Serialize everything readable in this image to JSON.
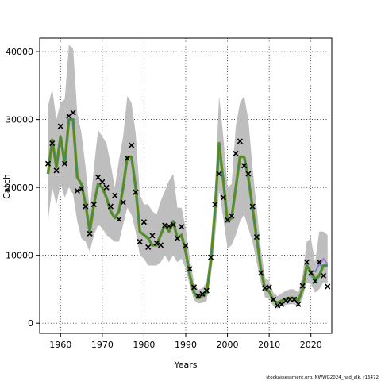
{
  "chart_data": {
    "type": "line",
    "title": "",
    "xlabel": "Years",
    "ylabel": "Catch",
    "xlim": [
      1955,
      2025
    ],
    "ylim": [
      -1500,
      42000
    ],
    "x_ticks": [
      1960,
      1970,
      1980,
      1990,
      2000,
      2010,
      2020
    ],
    "y_ticks": [
      0,
      10000,
      20000,
      30000,
      40000
    ],
    "grid": true,
    "grid_style": "dotted",
    "credit": "stockassessment.org, NWWG2024_had_alk, r16472",
    "colors": {
      "band": "#bebebe",
      "main_line": "#6b8e23",
      "line_green": "#2e8b57",
      "line_teal": "#5fb8b0",
      "line_blue": "#6a7fd6",
      "line_purple": "#9b7fd0",
      "observed": "#000000"
    },
    "years": [
      1957,
      1958,
      1959,
      1960,
      1961,
      1962,
      1963,
      1964,
      1965,
      1966,
      1967,
      1968,
      1969,
      1970,
      1971,
      1972,
      1973,
      1974,
      1975,
      1976,
      1977,
      1978,
      1979,
      1980,
      1981,
      1982,
      1983,
      1984,
      1985,
      1986,
      1987,
      1988,
      1989,
      1990,
      1991,
      1992,
      1993,
      1994,
      1995,
      1996,
      1997,
      1998,
      1999,
      2000,
      2001,
      2002,
      2003,
      2004,
      2005,
      2006,
      2007,
      2008,
      2009,
      2010,
      2011,
      2012,
      2013,
      2014,
      2015,
      2016,
      2017,
      2018,
      2019,
      2020,
      2021,
      2022,
      2023,
      2024
    ],
    "estimate": [
      22000,
      27000,
      23000,
      27500,
      23500,
      30000,
      30000,
      21500,
      20500,
      17500,
      13500,
      17500,
      20500,
      20000,
      18500,
      16500,
      15500,
      16500,
      20000,
      24500,
      24500,
      20000,
      13500,
      13000,
      12500,
      11500,
      11500,
      13000,
      14500,
      13500,
      15000,
      12500,
      13000,
      10500,
      7000,
      4500,
      3700,
      4000,
      4500,
      9000,
      16500,
      26500,
      21000,
      15000,
      15500,
      20000,
      24500,
      24500,
      21500,
      17000,
      12500,
      8000,
      5000,
      4700,
      3300,
      3000,
      3300,
      3600,
      3700,
      3700,
      3300,
      5000,
      8500,
      7500,
      6500,
      7000,
      8500,
      8500
    ],
    "upper": [
      32000,
      34500,
      30000,
      32500,
      33000,
      41000,
      40500,
      31000,
      28000,
      23000,
      16500,
      23000,
      28500,
      27500,
      26500,
      23500,
      20000,
      24000,
      27500,
      33500,
      32500,
      28000,
      19000,
      17500,
      17500,
      16500,
      16000,
      18000,
      19500,
      21000,
      22000,
      17000,
      17000,
      14000,
      9500,
      6000,
      4900,
      5200,
      6000,
      11500,
      19500,
      33500,
      27500,
      20000,
      20500,
      29000,
      32500,
      33500,
      30000,
      23000,
      17000,
      11000,
      6700,
      6200,
      4500,
      4000,
      4400,
      4800,
      5000,
      5000,
      4500,
      7000,
      12000,
      12500,
      9000,
      13500,
      13500,
      13000
    ],
    "lower": [
      15000,
      20000,
      17500,
      20500,
      18500,
      20000,
      19000,
      15000,
      12500,
      12000,
      10500,
      13000,
      14500,
      14000,
      13000,
      12500,
      12000,
      12000,
      14500,
      17000,
      16000,
      13500,
      10000,
      9500,
      8500,
      8500,
      8500,
      9000,
      10000,
      9000,
      10000,
      9000,
      9500,
      8000,
      5500,
      3400,
      2900,
      3000,
      3300,
      6800,
      12500,
      19500,
      15500,
      11000,
      11500,
      13000,
      15000,
      16000,
      14000,
      12000,
      9000,
      6000,
      3800,
      3600,
      2500,
      2200,
      2500,
      2700,
      2800,
      2800,
      2500,
      3700,
      6000,
      5800,
      4500,
      5000,
      6000,
      6000
    ],
    "observed": [
      [
        1957,
        23500
      ],
      [
        1958,
        26500
      ],
      [
        1959,
        22500
      ],
      [
        1960,
        29000
      ],
      [
        1961,
        23500
      ],
      [
        1962,
        30500
      ],
      [
        1963,
        31000
      ],
      [
        1964,
        19500
      ],
      [
        1965,
        19800
      ],
      [
        1966,
        17200
      ],
      [
        1967,
        13200
      ],
      [
        1968,
        17500
      ],
      [
        1969,
        21500
      ],
      [
        1970,
        20800
      ],
      [
        1971,
        20000
      ],
      [
        1972,
        17200
      ],
      [
        1973,
        18800
      ],
      [
        1974,
        15300
      ],
      [
        1975,
        17800
      ],
      [
        1976,
        24300
      ],
      [
        1977,
        26200
      ],
      [
        1978,
        19300
      ],
      [
        1979,
        12000
      ],
      [
        1980,
        14900
      ],
      [
        1981,
        11200
      ],
      [
        1982,
        12900
      ],
      [
        1983,
        11800
      ],
      [
        1984,
        11500
      ],
      [
        1985,
        14400
      ],
      [
        1986,
        14300
      ],
      [
        1987,
        14500
      ],
      [
        1988,
        12500
      ],
      [
        1989,
        14200
      ],
      [
        1990,
        11400
      ],
      [
        1991,
        8000
      ],
      [
        1992,
        5300
      ],
      [
        1993,
        4000
      ],
      [
        1994,
        4300
      ],
      [
        1995,
        4800
      ],
      [
        1996,
        9700
      ],
      [
        1997,
        17500
      ],
      [
        1998,
        22000
      ],
      [
        1999,
        18500
      ],
      [
        2000,
        15200
      ],
      [
        2001,
        15800
      ],
      [
        2002,
        25000
      ],
      [
        2003,
        26800
      ],
      [
        2004,
        23200
      ],
      [
        2005,
        22000
      ],
      [
        2006,
        17200
      ],
      [
        2007,
        12700
      ],
      [
        2008,
        7400
      ],
      [
        2009,
        5200
      ],
      [
        2010,
        5300
      ],
      [
        2011,
        3500
      ],
      [
        2012,
        2600
      ],
      [
        2013,
        2800
      ],
      [
        2014,
        3300
      ],
      [
        2015,
        3500
      ],
      [
        2016,
        3500
      ],
      [
        2017,
        2800
      ],
      [
        2018,
        5500
      ],
      [
        2019,
        9000
      ],
      [
        2020,
        7400
      ],
      [
        2021,
        6200
      ],
      [
        2022,
        9000
      ],
      [
        2023,
        7000
      ],
      [
        2024,
        5400
      ]
    ],
    "retro_series": [
      {
        "color_key": "line_teal",
        "years": [
          2019,
          2020,
          2021,
          2022
        ],
        "values": [
          8600,
          7000,
          6000,
          6800
        ]
      },
      {
        "color_key": "line_blue",
        "years": [
          2021,
          2022,
          2023
        ],
        "values": [
          7500,
          8700,
          8200
        ]
      },
      {
        "color_key": "line_purple",
        "years": [
          2022,
          2023,
          2024
        ],
        "values": [
          8600,
          9500,
          8700
        ]
      }
    ]
  }
}
